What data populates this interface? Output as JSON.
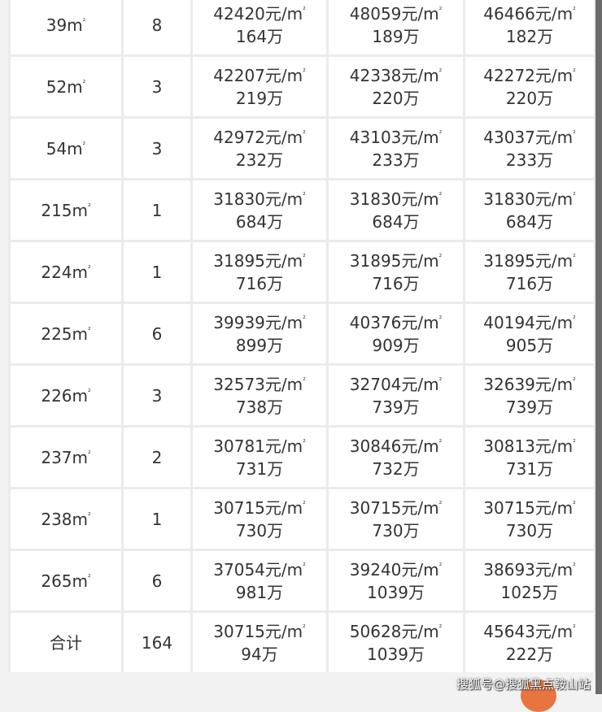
{
  "unit_price_suffix": "元/m",
  "total_suffix": "万",
  "area_suffix": "m",
  "sq": "²",
  "rows": [
    {
      "area": "39",
      "count": "8",
      "cols": [
        [
          "42420",
          "164"
        ],
        [
          "48059",
          "189"
        ],
        [
          "46466",
          "182"
        ]
      ]
    },
    {
      "area": "52",
      "count": "3",
      "cols": [
        [
          "42207",
          "219"
        ],
        [
          "42338",
          "220"
        ],
        [
          "42272",
          "220"
        ]
      ]
    },
    {
      "area": "54",
      "count": "3",
      "cols": [
        [
          "42972",
          "232"
        ],
        [
          "43103",
          "233"
        ],
        [
          "43037",
          "233"
        ]
      ]
    },
    {
      "area": "215",
      "count": "1",
      "cols": [
        [
          "31830",
          "684"
        ],
        [
          "31830",
          "684"
        ],
        [
          "31830",
          "684"
        ]
      ]
    },
    {
      "area": "224",
      "count": "1",
      "cols": [
        [
          "31895",
          "716"
        ],
        [
          "31895",
          "716"
        ],
        [
          "31895",
          "716"
        ]
      ]
    },
    {
      "area": "225",
      "count": "6",
      "cols": [
        [
          "39939",
          "899"
        ],
        [
          "40376",
          "909"
        ],
        [
          "40194",
          "905"
        ]
      ]
    },
    {
      "area": "226",
      "count": "3",
      "cols": [
        [
          "32573",
          "738"
        ],
        [
          "32704",
          "739"
        ],
        [
          "32639",
          "739"
        ]
      ]
    },
    {
      "area": "237",
      "count": "2",
      "cols": [
        [
          "30781",
          "731"
        ],
        [
          "30846",
          "732"
        ],
        [
          "30813",
          "731"
        ]
      ]
    },
    {
      "area": "238",
      "count": "1",
      "cols": [
        [
          "30715",
          "730"
        ],
        [
          "30715",
          "730"
        ],
        [
          "30715",
          "730"
        ]
      ]
    },
    {
      "area": "265",
      "count": "6",
      "cols": [
        [
          "37054",
          "981"
        ],
        [
          "39240",
          "1039"
        ],
        [
          "38693",
          "1025"
        ]
      ]
    }
  ],
  "total": {
    "label": "合计",
    "count": "164",
    "cols": [
      [
        "30715",
        "94"
      ],
      [
        "50628",
        "1039"
      ],
      [
        "45643",
        "222"
      ]
    ]
  },
  "watermark": "搜狐号@搜狐黑点鞍山站"
}
